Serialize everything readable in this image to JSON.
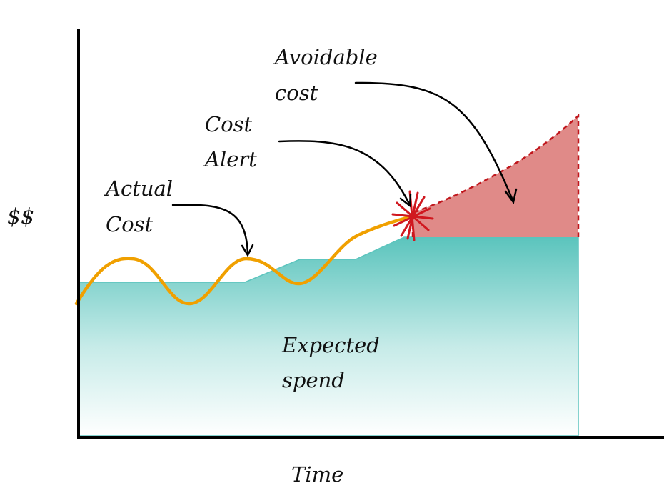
{
  "axes": {
    "y_label": "$$",
    "x_label": "Time"
  },
  "annotations": {
    "actual_cost": [
      "Actual",
      "Cost"
    ],
    "cost_alert": [
      "Cost",
      "Alert"
    ],
    "avoidable_cost": [
      "Avoidable",
      "cost"
    ],
    "expected_spend": [
      "Expected",
      "spend"
    ]
  },
  "colors": {
    "expected_fill_top": "#5bc4bd",
    "expected_fill_bottom": "#ffffff",
    "avoidable_fill": "#e08a88",
    "avoidable_edge": "#c0171d",
    "actual_line": "#f0a000",
    "alert_star": "#d0181f",
    "axis": "#000000"
  },
  "icons": {
    "alert": "starburst-icon"
  }
}
